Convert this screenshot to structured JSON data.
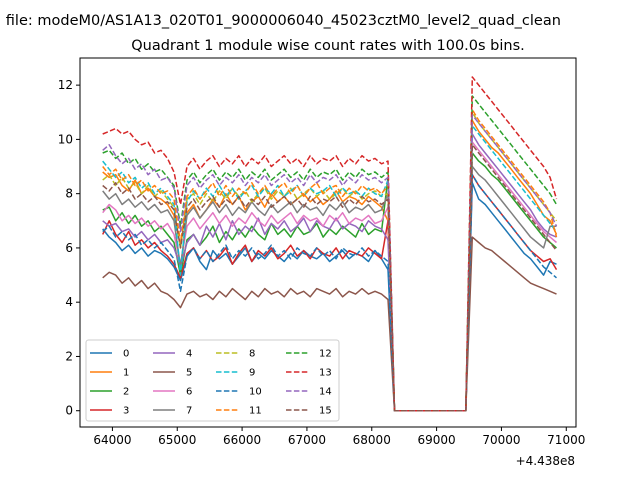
{
  "suptitle": "n file: modeM0/AS1A13_020T01_9000006040_45023cztM0_level2_quad_clean",
  "chart_data": {
    "type": "line",
    "title": "Quadrant 1 module wise count rates with 100.0s bins.",
    "xlabel": "",
    "ylabel": "",
    "x_offset_label": "+4.438e8",
    "xlim": [
      63500,
      71150
    ],
    "ylim": [
      -0.6,
      13.0
    ],
    "x_ticks": [
      64000,
      65000,
      66000,
      67000,
      68000,
      69000,
      70000,
      71000
    ],
    "x_tick_labels": [
      "64000",
      "65000",
      "66000",
      "67000",
      "68000",
      "69000",
      "70000",
      "71000"
    ],
    "y_ticks": [
      0,
      2,
      4,
      6,
      8,
      10,
      12
    ],
    "y_tick_labels": [
      "0",
      "2",
      "4",
      "6",
      "8",
      "10",
      "12"
    ],
    "grid": false,
    "legend_position": "lower-left",
    "x_start": 63850,
    "x_step": 100,
    "gap_start": 68450,
    "gap_end": 69450,
    "x_end": 70850,
    "series": [
      {
        "name": "0",
        "color": "#1f77b4",
        "dash": "solid",
        "seg1": [
          6.7,
          6.4,
          6.2,
          5.9,
          6.1,
          5.8,
          6.0,
          5.7,
          5.9,
          5.8,
          5.6,
          5.3,
          4.8,
          5.7,
          6.0,
          5.5,
          5.2,
          5.9,
          5.6,
          5.8,
          5.4,
          5.7,
          6.0,
          5.5,
          5.8,
          5.6,
          5.9,
          5.7,
          5.5,
          5.8,
          5.6,
          5.9,
          5.7,
          5.6,
          5.8,
          5.5,
          5.7,
          5.9,
          5.6,
          5.8,
          5.7,
          5.5,
          5.9,
          5.6,
          5.2,
          0
        ],
        "seg2": [
          0,
          8.4,
          7.8,
          7.6,
          7.3,
          7.0,
          6.7,
          6.4,
          6.1,
          5.8,
          5.6,
          5.3,
          5.0,
          5.5,
          5.4
        ]
      },
      {
        "name": "1",
        "color": "#ff7f0e",
        "dash": "solid",
        "seg1": [
          8.8,
          8.6,
          8.7,
          8.3,
          8.1,
          8.5,
          8.0,
          8.2,
          7.9,
          7.8,
          7.6,
          7.2,
          5.0,
          7.3,
          7.6,
          7.1,
          7.4,
          7.8,
          7.5,
          8.0,
          7.6,
          7.9,
          7.4,
          7.7,
          7.9,
          7.5,
          8.0,
          7.7,
          7.9,
          7.6,
          7.8,
          8.0,
          7.7,
          7.9,
          7.6,
          7.8,
          8.1,
          7.7,
          7.9,
          7.8,
          7.6,
          7.9,
          7.7,
          7.5,
          7.0,
          0
        ],
        "seg2": [
          0,
          10.7,
          10.3,
          10.0,
          9.7,
          9.5,
          9.2,
          8.9,
          8.6,
          8.3,
          8.0,
          7.6,
          7.2,
          7.0,
          6.5
        ]
      },
      {
        "name": "2",
        "color": "#2ca02c",
        "dash": "solid",
        "seg1": [
          7.4,
          7.5,
          7.0,
          7.3,
          6.9,
          7.2,
          6.8,
          7.0,
          6.6,
          6.8,
          6.5,
          6.2,
          5.0,
          6.3,
          6.5,
          6.1,
          6.4,
          6.8,
          6.2,
          6.6,
          6.3,
          6.7,
          6.4,
          6.8,
          6.5,
          6.3,
          6.9,
          6.5,
          6.7,
          6.4,
          6.8,
          6.5,
          6.6,
          6.9,
          6.4,
          6.7,
          6.5,
          6.8,
          6.6,
          6.4,
          6.9,
          6.5,
          6.7,
          6.6,
          8.6,
          0
        ],
        "seg2": [
          0,
          9.5,
          9.2,
          9.0,
          8.7,
          8.5,
          8.2,
          7.9,
          7.6,
          7.3,
          7.0,
          6.7,
          6.4,
          6.2,
          6.0
        ]
      },
      {
        "name": "3",
        "color": "#d62728",
        "dash": "solid",
        "seg1": [
          6.5,
          7.0,
          6.5,
          6.2,
          6.6,
          6.1,
          6.3,
          6.0,
          6.2,
          5.9,
          5.7,
          5.4,
          4.9,
          5.8,
          6.0,
          5.6,
          5.9,
          5.5,
          5.7,
          6.0,
          5.4,
          5.8,
          6.1,
          5.5,
          5.9,
          5.7,
          6.0,
          5.6,
          5.8,
          6.1,
          5.7,
          5.9,
          5.6,
          6.0,
          5.8,
          5.7,
          6.0,
          5.6,
          5.9,
          5.8,
          5.7,
          6.0,
          5.8,
          5.6,
          7.0,
          0
        ],
        "seg2": [
          0,
          8.7,
          8.3,
          8.0,
          7.7,
          7.4,
          7.1,
          6.8,
          6.5,
          6.2,
          5.9,
          5.7,
          5.5,
          5.6,
          5.2
        ]
      },
      {
        "name": "4",
        "color": "#9467bd",
        "dash": "solid",
        "seg1": [
          7.0,
          6.8,
          6.9,
          6.6,
          6.7,
          6.4,
          6.6,
          6.3,
          6.5,
          6.2,
          6.3,
          6.0,
          5.3,
          6.2,
          6.5,
          6.1,
          6.8,
          6.4,
          6.9,
          6.3,
          7.0,
          6.5,
          6.8,
          6.6,
          7.1,
          6.5,
          6.9,
          6.7,
          7.0,
          6.6,
          6.8,
          7.1,
          6.6,
          7.0,
          6.8,
          6.7,
          7.1,
          6.7,
          6.9,
          6.8,
          6.6,
          7.0,
          6.8,
          6.7,
          6.3,
          0
        ],
        "seg2": [
          0,
          10.2,
          9.8,
          9.5,
          9.2,
          8.9,
          8.6,
          8.3,
          8.0,
          7.7,
          7.4,
          7.0,
          6.7,
          6.5,
          6.4
        ]
      },
      {
        "name": "5",
        "color": "#8c564b",
        "dash": "solid",
        "seg1": [
          4.9,
          5.1,
          5.0,
          4.7,
          4.9,
          4.6,
          4.8,
          4.5,
          4.7,
          4.4,
          4.3,
          4.1,
          3.8,
          4.3,
          4.4,
          4.2,
          4.3,
          4.1,
          4.4,
          4.2,
          4.5,
          4.3,
          4.1,
          4.4,
          4.2,
          4.5,
          4.3,
          4.4,
          4.2,
          4.5,
          4.3,
          4.4,
          4.2,
          4.5,
          4.4,
          4.3,
          4.5,
          4.2,
          4.4,
          4.3,
          4.5,
          4.3,
          4.4,
          4.3,
          4.1,
          0
        ],
        "seg2": [
          0,
          6.4,
          6.2,
          6.0,
          5.9,
          5.7,
          5.5,
          5.3,
          5.1,
          4.9,
          4.7,
          4.6,
          4.5,
          4.4,
          4.3
        ]
      },
      {
        "name": "6",
        "color": "#e377c2",
        "dash": "solid",
        "seg1": [
          7.3,
          7.6,
          7.4,
          7.0,
          7.2,
          6.9,
          7.1,
          6.8,
          7.0,
          6.7,
          6.9,
          6.5,
          5.4,
          6.8,
          7.1,
          6.7,
          7.0,
          7.3,
          6.9,
          7.2,
          6.8,
          7.1,
          6.9,
          7.3,
          7.0,
          6.8,
          7.2,
          6.9,
          7.1,
          7.3,
          6.9,
          7.2,
          7.0,
          7.1,
          6.8,
          7.2,
          7.0,
          7.3,
          6.9,
          7.1,
          7.0,
          7.2,
          6.9,
          7.0,
          7.5,
          0
        ],
        "seg2": [
          0,
          9.9,
          9.6,
          9.3,
          9.0,
          8.7,
          8.4,
          8.1,
          7.8,
          7.5,
          7.2,
          6.9,
          6.6,
          6.4,
          6.2
        ]
      },
      {
        "name": "7",
        "color": "#7f7f7f",
        "dash": "solid",
        "seg1": [
          8.1,
          7.8,
          8.0,
          7.6,
          7.8,
          7.5,
          7.7,
          7.4,
          7.6,
          7.3,
          7.4,
          7.0,
          5.3,
          7.2,
          7.5,
          7.1,
          7.4,
          7.7,
          7.3,
          7.6,
          7.2,
          7.5,
          7.3,
          7.7,
          7.4,
          7.2,
          7.6,
          7.3,
          7.5,
          7.7,
          7.3,
          7.6,
          7.4,
          7.5,
          7.2,
          7.6,
          7.4,
          7.7,
          7.3,
          7.5,
          7.4,
          7.6,
          7.3,
          7.4,
          8.0,
          0
        ],
        "seg2": [
          0,
          9.0,
          8.7,
          8.5,
          8.2,
          7.9,
          7.6,
          7.3,
          7.0,
          6.7,
          6.4,
          6.2,
          6.0,
          6.8,
          6.8
        ]
      },
      {
        "name": "8",
        "color": "#bcbd22",
        "dash": "dashed",
        "seg1": [
          8.5,
          8.7,
          8.3,
          8.6,
          8.2,
          8.4,
          8.0,
          8.3,
          7.9,
          8.1,
          7.8,
          7.5,
          6.0,
          7.8,
          8.0,
          7.6,
          8.0,
          7.7,
          8.1,
          7.8,
          8.2,
          7.9,
          8.1,
          7.7,
          8.0,
          8.2,
          7.8,
          8.1,
          7.9,
          8.2,
          7.8,
          8.0,
          8.2,
          7.9,
          8.1,
          7.8,
          8.0,
          8.2,
          7.9,
          8.1,
          7.8,
          8.0,
          8.1,
          7.9,
          8.0,
          0
        ],
        "seg2": [
          0,
          11.0,
          10.6,
          10.3,
          10.0,
          9.7,
          9.4,
          9.1,
          8.8,
          8.5,
          8.2,
          7.9,
          7.6,
          7.3,
          7.0
        ]
      },
      {
        "name": "9",
        "color": "#17becf",
        "dash": "dashed",
        "seg1": [
          9.2,
          8.9,
          8.6,
          8.8,
          8.4,
          8.6,
          8.2,
          8.4,
          8.0,
          8.2,
          7.9,
          7.6,
          5.0,
          7.7,
          8.1,
          7.8,
          8.2,
          7.9,
          8.3,
          7.9,
          8.2,
          7.8,
          8.1,
          8.3,
          7.9,
          8.2,
          8.0,
          8.3,
          7.9,
          8.1,
          8.3,
          7.9,
          8.2,
          8.0,
          8.1,
          8.3,
          7.9,
          8.2,
          8.0,
          8.1,
          7.9,
          8.2,
          8.0,
          7.9,
          8.5,
          0
        ],
        "seg2": [
          0,
          10.5,
          10.2,
          9.9,
          9.6,
          9.3,
          9.0,
          8.7,
          8.4,
          8.1,
          7.8,
          7.5,
          7.2,
          6.9,
          6.6
        ]
      },
      {
        "name": "10",
        "color": "#1f77b4",
        "dash": "dashed",
        "seg1": [
          6.6,
          6.8,
          6.4,
          6.6,
          6.3,
          6.5,
          6.1,
          6.3,
          6.0,
          6.2,
          5.9,
          5.6,
          4.4,
          5.7,
          6.0,
          5.6,
          5.9,
          5.5,
          5.8,
          6.1,
          5.6,
          5.9,
          5.7,
          6.0,
          5.6,
          5.8,
          6.1,
          5.7,
          5.9,
          5.6,
          6.0,
          5.8,
          5.7,
          6.0,
          5.7,
          5.9,
          5.6,
          6.0,
          5.8,
          5.7,
          6.0,
          5.7,
          5.9,
          5.7,
          5.5,
          0
        ],
        "seg2": [
          0,
          8.7,
          8.3,
          8.0,
          7.7,
          7.4,
          7.1,
          6.8,
          6.5,
          6.2,
          5.9,
          5.6,
          5.3,
          5.1,
          4.9
        ]
      },
      {
        "name": "11",
        "color": "#ff7f0e",
        "dash": "dashed",
        "seg1": [
          9.0,
          8.7,
          8.9,
          8.5,
          8.7,
          8.3,
          8.5,
          8.1,
          8.3,
          8.0,
          8.1,
          7.8,
          6.2,
          7.9,
          8.2,
          7.8,
          8.1,
          8.4,
          7.9,
          8.3,
          7.9,
          8.2,
          8.0,
          8.4,
          8.0,
          8.3,
          7.9,
          8.2,
          8.4,
          8.0,
          8.3,
          7.9,
          8.2,
          8.4,
          8.0,
          8.2,
          8.3,
          7.9,
          8.2,
          8.0,
          8.3,
          8.1,
          8.2,
          8.0,
          8.3,
          0
        ],
        "seg2": [
          0,
          11.1,
          10.7,
          10.4,
          10.1,
          9.8,
          9.5,
          9.2,
          8.9,
          8.6,
          8.3,
          8.0,
          7.7,
          7.3,
          6.4
        ]
      },
      {
        "name": "12",
        "color": "#2ca02c",
        "dash": "dashed",
        "seg1": [
          9.5,
          9.6,
          9.3,
          9.5,
          9.1,
          9.3,
          8.9,
          9.1,
          8.8,
          8.9,
          8.6,
          8.3,
          6.8,
          8.5,
          8.8,
          8.4,
          8.7,
          8.9,
          8.5,
          8.8,
          8.6,
          8.9,
          8.5,
          8.8,
          8.6,
          8.9,
          8.5,
          8.7,
          8.9,
          8.6,
          8.8,
          8.5,
          8.9,
          8.6,
          8.8,
          8.7,
          8.9,
          8.5,
          8.8,
          8.6,
          8.9,
          8.7,
          8.8,
          8.6,
          8.8,
          0
        ],
        "seg2": [
          0,
          11.6,
          11.3,
          11.0,
          10.7,
          10.4,
          10.1,
          9.8,
          9.5,
          9.2,
          8.9,
          8.6,
          8.3,
          8.0,
          7.6
        ]
      },
      {
        "name": "13",
        "color": "#d62728",
        "dash": "dashed",
        "seg1": [
          10.2,
          10.3,
          10.4,
          10.2,
          10.3,
          10.0,
          9.8,
          9.9,
          9.5,
          9.6,
          9.3,
          8.8,
          7.6,
          9.0,
          9.3,
          8.9,
          9.2,
          9.4,
          9.0,
          9.3,
          9.1,
          9.4,
          9.0,
          9.3,
          9.1,
          9.4,
          9.0,
          9.2,
          9.4,
          9.1,
          9.3,
          9.0,
          9.4,
          9.1,
          9.3,
          9.2,
          9.4,
          9.0,
          9.3,
          9.1,
          9.4,
          9.2,
          9.3,
          9.1,
          9.2,
          0
        ],
        "seg2": [
          0,
          12.3,
          12.0,
          11.7,
          11.4,
          11.1,
          10.8,
          10.5,
          10.2,
          9.9,
          9.6,
          9.3,
          9.0,
          8.6,
          7.8
        ]
      },
      {
        "name": "14",
        "color": "#9467bd",
        "dash": "dashed",
        "seg1": [
          9.6,
          9.8,
          9.4,
          9.1,
          9.3,
          8.9,
          9.1,
          8.7,
          8.9,
          8.5,
          8.6,
          8.2,
          6.6,
          8.3,
          8.6,
          8.2,
          8.5,
          8.7,
          8.3,
          8.6,
          8.4,
          8.7,
          8.3,
          8.6,
          8.4,
          8.7,
          8.3,
          8.5,
          8.7,
          8.4,
          8.6,
          8.3,
          8.7,
          8.4,
          8.6,
          8.5,
          8.7,
          8.3,
          8.6,
          8.4,
          8.7,
          8.5,
          8.6,
          8.4,
          8.6,
          0
        ],
        "seg2": [
          0,
          10.9,
          10.6,
          10.3,
          10.0,
          9.7,
          9.4,
          9.1,
          8.8,
          8.5,
          8.2,
          7.9,
          7.6,
          7.3,
          6.8
        ]
      },
      {
        "name": "15",
        "color": "#8c564b",
        "dash": "dashed",
        "seg1": [
          8.3,
          8.1,
          8.4,
          8.0,
          8.2,
          7.8,
          8.0,
          7.7,
          7.9,
          7.6,
          7.7,
          7.4,
          6.0,
          7.5,
          7.8,
          7.4,
          7.7,
          7.9,
          7.5,
          7.8,
          7.6,
          7.9,
          7.5,
          7.8,
          7.6,
          7.9,
          7.5,
          7.7,
          7.9,
          7.6,
          7.8,
          7.5,
          7.9,
          7.6,
          7.8,
          7.7,
          7.9,
          7.5,
          7.8,
          7.6,
          7.9,
          7.7,
          7.8,
          7.6,
          7.8,
          0
        ],
        "seg2": [
          0,
          9.8,
          9.5,
          9.2,
          8.9,
          8.6,
          8.3,
          8.0,
          7.7,
          7.4,
          7.1,
          6.8,
          6.5,
          6.2,
          5.9
        ]
      }
    ]
  }
}
